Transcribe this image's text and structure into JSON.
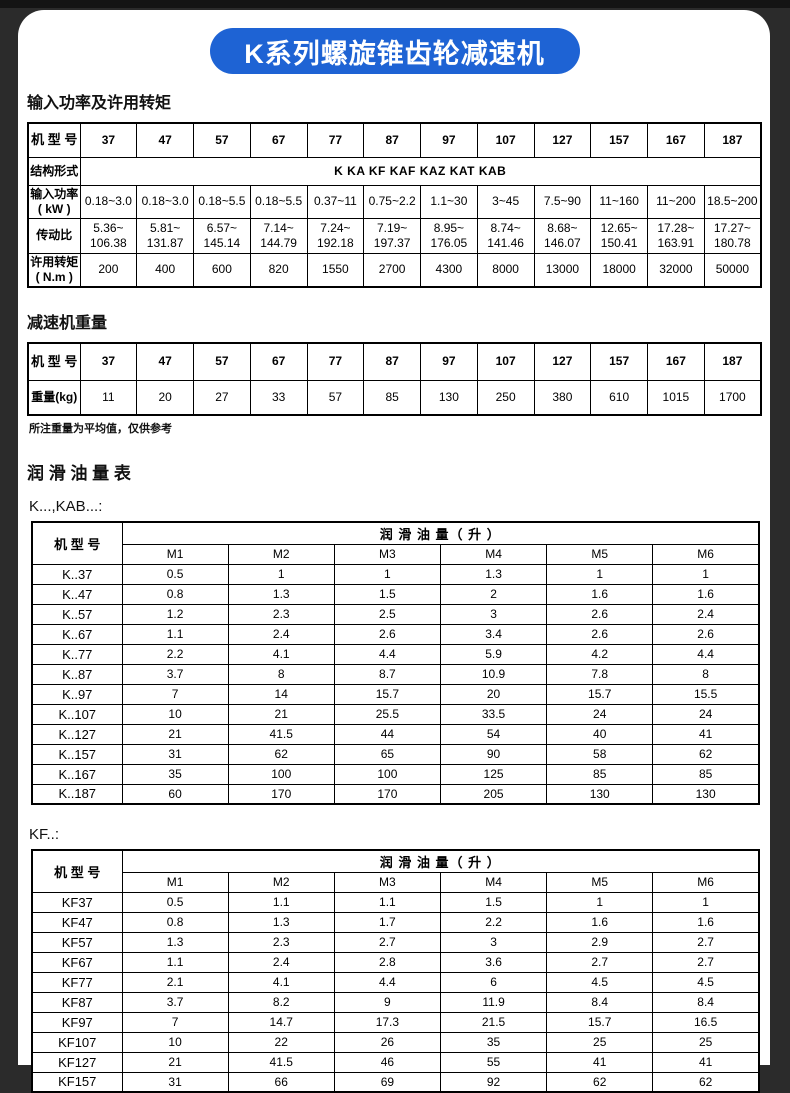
{
  "page_title": "K系列螺旋锥齿轮减速机",
  "colors": {
    "accent_blue": "#1e63d4",
    "page_background": "#2b2b2b",
    "card_background": "#ffffff",
    "table_border": "#000000",
    "title_text": "#ffffff"
  },
  "power_section": {
    "heading": "输入功率及许用转矩",
    "row_labels": [
      "机 型 号",
      "结构形式",
      "输入功率\n( kW )",
      "传动比",
      "许用转矩\n( N.m )"
    ],
    "models": [
      "37",
      "47",
      "57",
      "67",
      "77",
      "87",
      "97",
      "107",
      "127",
      "157",
      "167",
      "187"
    ],
    "structure_forms": "K    KA    KF    KAF    KAZ    KAT    KAB",
    "input_power": [
      "0.18~3.0",
      "0.18~3.0",
      "0.18~5.5",
      "0.18~5.5",
      "0.37~11",
      "0.75~2.2",
      "1.1~30",
      "3~45",
      "7.5~90",
      "11~160",
      "11~200",
      "18.5~200"
    ],
    "ratio": [
      "5.36~\n106.38",
      "5.81~\n131.87",
      "6.57~\n145.14",
      "7.14~\n144.79",
      "7.24~\n192.18",
      "7.19~\n197.37",
      "8.95~\n176.05",
      "8.74~\n141.46",
      "8.68~\n146.07",
      "12.65~\n150.41",
      "17.28~\n163.91",
      "17.27~\n180.78"
    ],
    "torque": [
      "200",
      "400",
      "600",
      "820",
      "1550",
      "2700",
      "4300",
      "8000",
      "13000",
      "18000",
      "32000",
      "50000"
    ]
  },
  "weight_section": {
    "heading": "减速机重量",
    "row_labels": [
      "机 型 号",
      "重量(kg)"
    ],
    "models": [
      "37",
      "47",
      "57",
      "67",
      "77",
      "87",
      "97",
      "107",
      "127",
      "157",
      "167",
      "187"
    ],
    "weights": [
      "11",
      "20",
      "27",
      "33",
      "57",
      "85",
      "130",
      "250",
      "380",
      "610",
      "1015",
      "1700"
    ],
    "note": "所注重量为平均值，仅供参考"
  },
  "oil_section": {
    "heading": "润 滑 油 量 表",
    "col_header": "机 型 号",
    "span_header": "润 滑 油 量（ 升 ）",
    "m_columns": [
      "M1",
      "M2",
      "M3",
      "M4",
      "M5",
      "M6"
    ],
    "tables": [
      {
        "label": "K...,KAB...:",
        "rows": [
          {
            "model": "K..37",
            "values": [
              "0.5",
              "1",
              "1",
              "1.3",
              "1",
              "1"
            ]
          },
          {
            "model": "K..47",
            "values": [
              "0.8",
              "1.3",
              "1.5",
              "2",
              "1.6",
              "1.6"
            ]
          },
          {
            "model": "K..57",
            "values": [
              "1.2",
              "2.3",
              "2.5",
              "3",
              "2.6",
              "2.4"
            ]
          },
          {
            "model": "K..67",
            "values": [
              "1.1",
              "2.4",
              "2.6",
              "3.4",
              "2.6",
              "2.6"
            ]
          },
          {
            "model": "K..77",
            "values": [
              "2.2",
              "4.1",
              "4.4",
              "5.9",
              "4.2",
              "4.4"
            ]
          },
          {
            "model": "K..87",
            "values": [
              "3.7",
              "8",
              "8.7",
              "10.9",
              "7.8",
              "8"
            ]
          },
          {
            "model": "K..97",
            "values": [
              "7",
              "14",
              "15.7",
              "20",
              "15.7",
              "15.5"
            ]
          },
          {
            "model": "K..107",
            "values": [
              "10",
              "21",
              "25.5",
              "33.5",
              "24",
              "24"
            ]
          },
          {
            "model": "K..127",
            "values": [
              "21",
              "41.5",
              "44",
              "54",
              "40",
              "41"
            ]
          },
          {
            "model": "K..157",
            "values": [
              "31",
              "62",
              "65",
              "90",
              "58",
              "62"
            ]
          },
          {
            "model": "K..167",
            "values": [
              "35",
              "100",
              "100",
              "125",
              "85",
              "85"
            ]
          },
          {
            "model": "K..187",
            "values": [
              "60",
              "170",
              "170",
              "205",
              "130",
              "130"
            ]
          }
        ]
      },
      {
        "label": "KF..:",
        "rows": [
          {
            "model": "KF37",
            "values": [
              "0.5",
              "1.1",
              "1.1",
              "1.5",
              "1",
              "1"
            ]
          },
          {
            "model": "KF47",
            "values": [
              "0.8",
              "1.3",
              "1.7",
              "2.2",
              "1.6",
              "1.6"
            ]
          },
          {
            "model": "KF57",
            "values": [
              "1.3",
              "2.3",
              "2.7",
              "3",
              "2.9",
              "2.7"
            ]
          },
          {
            "model": "KF67",
            "values": [
              "1.1",
              "2.4",
              "2.8",
              "3.6",
              "2.7",
              "2.7"
            ]
          },
          {
            "model": "KF77",
            "values": [
              "2.1",
              "4.1",
              "4.4",
              "6",
              "4.5",
              "4.5"
            ]
          },
          {
            "model": "KF87",
            "values": [
              "3.7",
              "8.2",
              "9",
              "11.9",
              "8.4",
              "8.4"
            ]
          },
          {
            "model": "KF97",
            "values": [
              "7",
              "14.7",
              "17.3",
              "21.5",
              "15.7",
              "16.5"
            ]
          },
          {
            "model": "KF107",
            "values": [
              "10",
              "22",
              "26",
              "35",
              "25",
              "25"
            ]
          },
          {
            "model": "KF127",
            "values": [
              "21",
              "41.5",
              "46",
              "55",
              "41",
              "41"
            ]
          },
          {
            "model": "KF157",
            "values": [
              "31",
              "66",
              "69",
              "92",
              "62",
              "62"
            ]
          }
        ]
      }
    ]
  }
}
